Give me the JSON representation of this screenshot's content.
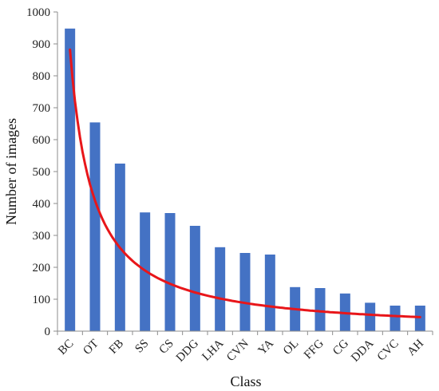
{
  "chart_data": {
    "type": "bar",
    "title": "",
    "xlabel": "Class",
    "ylabel": "Number of images",
    "categories": [
      "BC",
      "OT",
      "FB",
      "SS",
      "CS",
      "DDG",
      "LHA",
      "CVN",
      "YA",
      "OL",
      "FFG",
      "CG",
      "DDA",
      "CVC",
      "AH"
    ],
    "series": [
      {
        "values": [
          948,
          654,
          525,
          372,
          370,
          330,
          263,
          245,
          240,
          138,
          135,
          118,
          89,
          80,
          80
        ],
        "color": "#4472C4"
      }
    ],
    "trendline": {
      "type": "power",
      "color": "#E8161A",
      "start": 882,
      "end": 44
    },
    "ylim": [
      0,
      1000
    ],
    "yticks": [
      0,
      100,
      200,
      300,
      400,
      500,
      600,
      700,
      800,
      900,
      1000
    ],
    "grid": false,
    "legend": "none"
  }
}
